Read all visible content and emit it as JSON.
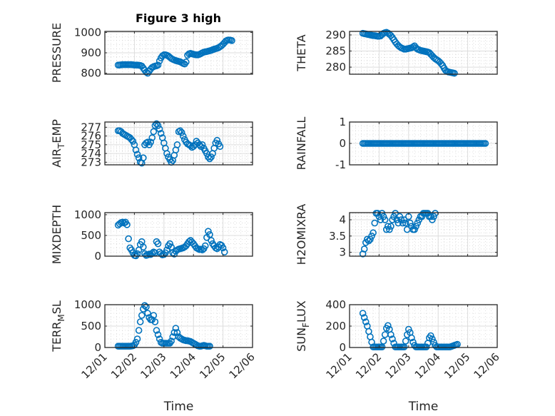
{
  "figure": {
    "title": "Figure 3 high",
    "marker_color": "#0072BD",
    "xlabel": "Time"
  },
  "chart_data": [
    {
      "type": "scatter",
      "title": "Figure 3 high",
      "ylabel": "PRESSURE",
      "ylabel_sub": "",
      "xlabel": "",
      "xlim": [
        0,
        5
      ],
      "ylim": [
        795,
        1005
      ],
      "yticks": [
        800,
        900,
        1000
      ],
      "ytick_labels": [
        "800",
        "900",
        "1000"
      ],
      "xticks": [
        0,
        1,
        2,
        3,
        4,
        5
      ],
      "xtick_labels": [
        "",
        "",
        "",
        "",
        "",
        ""
      ],
      "grid": true,
      "minor_grid": true,
      "x_start": 0.45,
      "x_step": 0.05,
      "values": [
        840,
        840,
        841,
        842,
        842,
        842,
        842,
        842,
        842,
        842,
        841,
        840,
        840,
        840,
        839,
        838,
        835,
        825,
        815,
        805,
        800,
        810,
        820,
        828,
        832,
        835,
        836,
        840,
        860,
        875,
        885,
        890,
        890,
        888,
        884,
        878,
        872,
        868,
        865,
        862,
        860,
        858,
        856,
        852,
        848,
        845,
        855,
        888,
        895,
        897,
        895,
        893,
        891,
        890,
        890,
        892,
        896,
        900,
        903,
        905,
        906,
        908,
        910,
        912,
        915,
        918,
        920,
        922,
        925,
        930,
        935,
        942,
        950,
        958,
        962,
        963,
        962,
        960
      ]
    },
    {
      "type": "scatter",
      "title": "",
      "ylabel": "THETA",
      "ylabel_sub": "",
      "xlabel": "",
      "xlim": [
        0,
        5
      ],
      "ylim": [
        277.8,
        291.1
      ],
      "yticks": [
        280,
        285,
        290
      ],
      "ytick_labels": [
        "280",
        "285",
        "290"
      ],
      "xticks": [
        0,
        1,
        2,
        3,
        4,
        5
      ],
      "xtick_labels": [
        "",
        "",
        "",
        "",
        "",
        ""
      ],
      "grid": true,
      "minor_grid": true,
      "x_start": 0.45,
      "x_step": 0.05,
      "values": [
        290.5,
        290.4,
        290.3,
        290.2,
        290.1,
        290.0,
        289.9,
        289.8,
        289.8,
        289.7,
        289.6,
        289.6,
        289.7,
        290.1,
        290.5,
        290.7,
        290.8,
        290.6,
        290.2,
        289.8,
        289.2,
        288.5,
        287.8,
        287.2,
        286.7,
        286.3,
        286.0,
        285.8,
        285.6,
        285.6,
        285.7,
        285.8,
        285.9,
        286.0,
        286.3,
        286.6,
        286.0,
        285.6,
        285.4,
        285.2,
        285.1,
        285.0,
        284.9,
        284.8,
        284.7,
        284.5,
        284.0,
        283.5,
        283.0,
        282.6,
        282.3,
        282.0,
        281.6,
        281.1,
        280.5,
        279.7,
        279.0,
        278.7,
        278.5,
        278.4,
        278.3,
        278.2,
        278.1
      ]
    },
    {
      "type": "scatter",
      "title": "",
      "ylabel": "AIR",
      "ylabel_sub": "T",
      "ylabel_rest": "EMP",
      "xlabel": "",
      "xlim": [
        0,
        5
      ],
      "ylim": [
        272.7,
        277.6
      ],
      "yticks": [
        273,
        274,
        275,
        276,
        277
      ],
      "ytick_labels": [
        "273",
        "274",
        "275",
        "276",
        "277"
      ],
      "xticks": [
        0,
        1,
        2,
        3,
        4,
        5
      ],
      "xtick_labels": [
        "",
        "",
        "",
        "",
        "",
        ""
      ],
      "grid": true,
      "minor_grid": true,
      "x_start": 0.45,
      "x_step": 0.05,
      "values": [
        276.6,
        276.6,
        276.5,
        276.3,
        276.2,
        276.1,
        276.0,
        275.9,
        275.8,
        275.6,
        275.4,
        275.0,
        274.4,
        273.9,
        273.5,
        273.0,
        272.9,
        273.5,
        275.0,
        275.2,
        275.3,
        275.0,
        275.3,
        275.8,
        276.5,
        277.2,
        277.4,
        277.2,
        276.8,
        276.3,
        275.8,
        275.2,
        274.6,
        274.0,
        273.6,
        273.3,
        273.0,
        273.2,
        273.8,
        274.4,
        275.0,
        276.5,
        276.6,
        276.4,
        276.0,
        275.6,
        275.3,
        275.1,
        275.0,
        274.9,
        274.7,
        274.8,
        275.0,
        275.4,
        275.2,
        275.0,
        274.8,
        275.0,
        274.6,
        274.3,
        274.0,
        273.6,
        273.4,
        273.6,
        274.0,
        274.6,
        275.2,
        275.5,
        275.1,
        274.8
      ]
    },
    {
      "type": "scatter",
      "title": "",
      "ylabel": "RAINFALL",
      "ylabel_sub": "",
      "xlabel": "",
      "xlim": [
        0,
        5
      ],
      "ylim": [
        -1,
        1
      ],
      "yticks": [
        -1,
        0,
        1
      ],
      "ytick_labels": [
        "-1",
        "0",
        "1"
      ],
      "xticks": [
        0,
        1,
        2,
        3,
        4,
        5
      ],
      "xtick_labels": [
        "",
        "",
        "",
        "",
        "",
        ""
      ],
      "grid": true,
      "minor_grid": true,
      "x_start": 0.45,
      "x_step": 0.05,
      "constant": 0,
      "count": 84
    },
    {
      "type": "scatter",
      "title": "",
      "ylabel": "MIXDEPTH",
      "ylabel_sub": "",
      "xlabel": "",
      "xlim": [
        0,
        5
      ],
      "ylim": [
        0,
        1050
      ],
      "yticks": [
        0,
        500,
        1000
      ],
      "ytick_labels": [
        "0",
        "500",
        "1000"
      ],
      "xticks": [
        0,
        1,
        2,
        3,
        4,
        5
      ],
      "xtick_labels": [
        "",
        "",
        "",
        "",
        "",
        ""
      ],
      "grid": true,
      "minor_grid": true,
      "x_start": 0.45,
      "x_step": 0.05,
      "values": [
        750,
        780,
        810,
        820,
        800,
        820,
        760,
        420,
        200,
        150,
        80,
        20,
        10,
        60,
        150,
        280,
        350,
        220,
        60,
        20,
        30,
        50,
        40,
        70,
        100,
        80,
        350,
        300,
        100,
        60,
        30,
        40,
        80,
        150,
        250,
        300,
        220,
        80,
        50,
        120,
        150,
        170,
        180,
        190,
        200,
        220,
        250,
        300,
        350,
        380,
        340,
        300,
        250,
        200,
        180,
        160,
        170,
        150,
        180,
        250,
        450,
        600,
        520,
        380,
        300,
        250,
        200,
        180,
        220,
        280,
        260,
        200,
        100
      ]
    },
    {
      "type": "scatter",
      "title": "",
      "ylabel": "H2OMIXRA",
      "ylabel_sub": "",
      "xlabel": "",
      "xlim": [
        0,
        5
      ],
      "ylim": [
        2.88,
        4.22
      ],
      "yticks": [
        3,
        3.5,
        4
      ],
      "ytick_labels": [
        "3",
        "3.5",
        "4"
      ],
      "xticks": [
        0,
        1,
        2,
        3,
        4,
        5
      ],
      "xtick_labels": [
        "",
        "",
        "",
        "",
        "",
        ""
      ],
      "grid": true,
      "minor_grid": true,
      "x_start": 0.45,
      "x_step": 0.05,
      "values": [
        2.95,
        3.1,
        3.3,
        3.4,
        3.35,
        3.4,
        3.5,
        3.6,
        3.9,
        4.2,
        4.2,
        4.1,
        4.0,
        4.2,
        4.1,
        4.0,
        3.7,
        3.8,
        3.7,
        3.8,
        4.0,
        4.1,
        4.2,
        4.0,
        3.9,
        4.1,
        4.0,
        3.9,
        4.0,
        3.9,
        3.7,
        4.1,
        3.9,
        3.8,
        3.7,
        3.7,
        3.8,
        3.9,
        4.0,
        4.1,
        4.1,
        4.2,
        4.2,
        4.2,
        4.2,
        4.1,
        4.1,
        4.0,
        4.1,
        4.2
      ]
    },
    {
      "type": "scatter",
      "title": "",
      "ylabel": "TERR",
      "ylabel_sub": "M",
      "ylabel_rest": "SL",
      "xlabel": "Time",
      "xlim": [
        0,
        5
      ],
      "ylim": [
        0,
        1000
      ],
      "yticks": [
        0,
        500,
        1000
      ],
      "ytick_labels": [
        "0",
        "500",
        "1000"
      ],
      "xticks": [
        0,
        1,
        2,
        3,
        4,
        5
      ],
      "xtick_labels": [
        "12/01",
        "12/02",
        "12/03",
        "12/04",
        "12/05",
        "12/06"
      ],
      "grid": true,
      "minor_grid": true,
      "x_start": 0.45,
      "x_step": 0.05,
      "values": [
        30,
        30,
        30,
        30,
        30,
        30,
        30,
        30,
        30,
        35,
        40,
        60,
        120,
        200,
        400,
        600,
        750,
        900,
        980,
        950,
        800,
        700,
        650,
        650,
        750,
        600,
        400,
        300,
        200,
        120,
        100,
        100,
        100,
        100,
        100,
        100,
        150,
        250,
        350,
        450,
        350,
        250,
        220,
        200,
        180,
        170,
        160,
        160,
        150,
        140,
        120,
        100,
        80,
        60,
        40,
        30,
        30,
        40,
        50,
        40,
        30,
        30,
        30
      ]
    },
    {
      "type": "scatter",
      "title": "",
      "ylabel": "SUN",
      "ylabel_sub": "F",
      "ylabel_rest": "LUX",
      "xlabel": "Time",
      "xlim": [
        0,
        5
      ],
      "ylim": [
        0,
        400
      ],
      "yticks": [
        0,
        200,
        400
      ],
      "ytick_labels": [
        "0",
        "200",
        "400"
      ],
      "xticks": [
        0,
        1,
        2,
        3,
        4,
        5
      ],
      "xtick_labels": [
        "12/01",
        "12/02",
        "12/03",
        "12/04",
        "12/05",
        "12/06"
      ],
      "grid": true,
      "minor_grid": true,
      "x_start": 0.45,
      "x_step": 0.05,
      "values": [
        320,
        280,
        240,
        200,
        150,
        100,
        50,
        5,
        5,
        5,
        5,
        5,
        5,
        5,
        60,
        120,
        180,
        205,
        170,
        120,
        80,
        40,
        5,
        5,
        5,
        5,
        5,
        5,
        5,
        60,
        120,
        170,
        140,
        90,
        50,
        20,
        5,
        5,
        5,
        5,
        5,
        5,
        5,
        5,
        40,
        90,
        110,
        80,
        50,
        20,
        5,
        5,
        5,
        5,
        5,
        5,
        5,
        5,
        5,
        5,
        10,
        15,
        20,
        25,
        30
      ]
    }
  ]
}
